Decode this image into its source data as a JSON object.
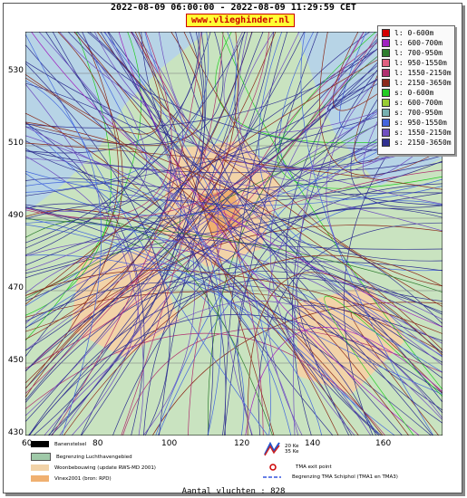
{
  "header": {
    "title": "2022-08-09 06:00:00 - 2022-08-09 11:29:59 CET",
    "site": "www.vlieghinder.nl"
  },
  "axes": {
    "y_ticks": [
      "530",
      "510",
      "490",
      "470",
      "450",
      "430"
    ],
    "x_ticks": [
      "60",
      "80",
      "100",
      "120",
      "140",
      "160"
    ]
  },
  "legend": {
    "items": [
      {
        "label": "l: 0-600m",
        "color": "#d40000"
      },
      {
        "label": "l: 600-700m",
        "color": "#a020c0"
      },
      {
        "label": "l: 700-950m",
        "color": "#2e7d2e"
      },
      {
        "label": "l: 950-1550m",
        "color": "#e06080"
      },
      {
        "label": "l: 1550-2150m",
        "color": "#b03070"
      },
      {
        "label": "l: 2150-3650m",
        "color": "#8b2a1a"
      },
      {
        "label": "s: 0-600m",
        "color": "#22cc22"
      },
      {
        "label": "s: 600-700m",
        "color": "#99cc33"
      },
      {
        "label": "s: 700-950m",
        "color": "#77b0b0"
      },
      {
        "label": "s: 950-1550m",
        "color": "#4466dd"
      },
      {
        "label": "s: 1550-2150m",
        "color": "#7050c0"
      },
      {
        "label": "s: 2150-3650m",
        "color": "#303090"
      }
    ]
  },
  "bottom_legend": {
    "runway": "Banenstelsel",
    "airport_boundary": "Begrenzing Luchthavengebied",
    "housing": "Woonbebouwing (update RWS-MD 2001)",
    "vinex": "Vinex2001 (bron: RPD)",
    "kv_top": "20 Ke",
    "kv_bottom": "35 Ke",
    "tma_exit": "TMA exit point",
    "tma_boundary": "Begrenzing TMA Schiphol  (TMA1 en TMA3)"
  },
  "footer": {
    "count_label": "Aantal vluchten : 828"
  },
  "colors": {
    "sea": "#b7d4e6",
    "land": "#c9e3c0",
    "urban": "#f2d3a8",
    "airport": "#f0b070"
  }
}
